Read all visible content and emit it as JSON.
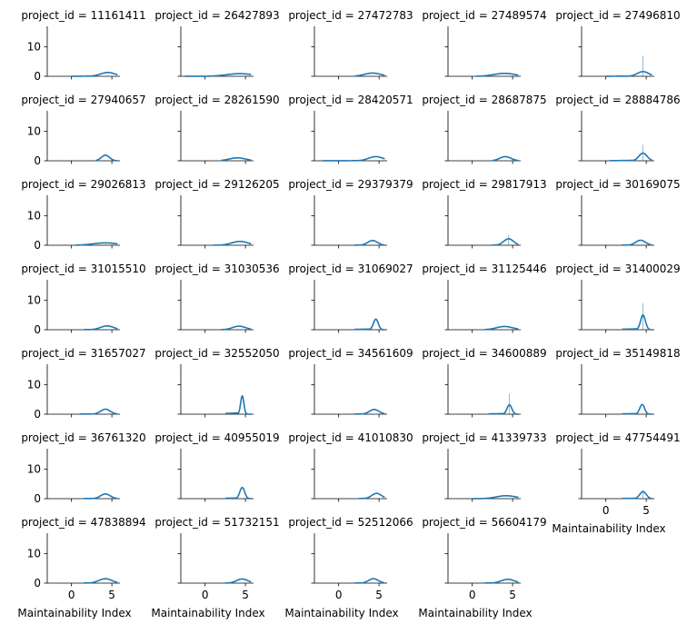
{
  "chart_data": {
    "type": "facet-kde",
    "description_title_format": "project_id = {id}",
    "xlabel": "Maintainability Index",
    "ylabel": "",
    "xlim": [
      -3,
      6
    ],
    "ylim": [
      0,
      17
    ],
    "x_ticks": [
      0,
      5
    ],
    "y_ticks": [
      0,
      10
    ],
    "n_columns": 5,
    "line_color": "#1f77b4",
    "panels": [
      {
        "title": "project_id = 11161411",
        "peak_x": 4.5,
        "peak_y": 1.3,
        "spread": 0.9,
        "x_min": 0.0
      },
      {
        "title": "project_id = 26427893",
        "peak_x": 4.3,
        "peak_y": 0.9,
        "spread": 1.6,
        "x_min": -2.5
      },
      {
        "title": "project_id = 27472783",
        "peak_x": 4.2,
        "peak_y": 1.1,
        "spread": 1.0,
        "x_min": 2.0
      },
      {
        "title": "project_id = 27489574",
        "peak_x": 4.0,
        "peak_y": 1.0,
        "spread": 1.3,
        "x_min": 0.5
      },
      {
        "title": "project_id = 27496810",
        "peak_x": 4.6,
        "peak_y": 1.6,
        "spread": 0.7,
        "x_min": 0.0,
        "spike": 7.0
      },
      {
        "title": "project_id = 27940657",
        "peak_x": 4.2,
        "peak_y": 1.9,
        "spread": 0.5,
        "x_min": 3.0
      },
      {
        "title": "project_id = 28261590",
        "peak_x": 4.0,
        "peak_y": 1.0,
        "spread": 1.0,
        "x_min": 2.0
      },
      {
        "title": "project_id = 28420571",
        "peak_x": 4.6,
        "peak_y": 1.4,
        "spread": 0.9,
        "x_min": -2.0
      },
      {
        "title": "project_id = 28687875",
        "peak_x": 4.1,
        "peak_y": 1.4,
        "spread": 0.7,
        "x_min": 2.5
      },
      {
        "title": "project_id = 28884786",
        "peak_x": 4.6,
        "peak_y": 2.6,
        "spread": 0.5,
        "x_min": 0.5,
        "spike": 5.5
      },
      {
        "title": "project_id = 29026813",
        "peak_x": 4.2,
        "peak_y": 0.8,
        "spread": 1.5,
        "x_min": 0.5
      },
      {
        "title": "project_id = 29126205",
        "peak_x": 4.3,
        "peak_y": 1.3,
        "spread": 1.0,
        "x_min": 1.0
      },
      {
        "title": "project_id = 29379379",
        "peak_x": 4.2,
        "peak_y": 1.6,
        "spread": 0.6,
        "x_min": 2.0
      },
      {
        "title": "project_id = 29817913",
        "peak_x": 4.5,
        "peak_y": 2.2,
        "spread": 0.6,
        "x_min": 2.5,
        "spike": 3.5
      },
      {
        "title": "project_id = 30169075",
        "peak_x": 4.3,
        "peak_y": 1.7,
        "spread": 0.6,
        "x_min": 2.0
      },
      {
        "title": "project_id = 31015510",
        "peak_x": 4.4,
        "peak_y": 1.3,
        "spread": 0.8,
        "x_min": 1.5
      },
      {
        "title": "project_id = 31030536",
        "peak_x": 4.2,
        "peak_y": 1.2,
        "spread": 0.8,
        "x_min": 2.0
      },
      {
        "title": "project_id = 31069027",
        "peak_x": 4.6,
        "peak_y": 3.6,
        "spread": 0.3,
        "x_min": 2.0
      },
      {
        "title": "project_id = 31125446",
        "peak_x": 4.0,
        "peak_y": 1.1,
        "spread": 1.0,
        "x_min": 1.5
      },
      {
        "title": "project_id = 31400029",
        "peak_x": 4.6,
        "peak_y": 5.0,
        "spread": 0.3,
        "x_min": 2.0,
        "spike": 9.0
      },
      {
        "title": "project_id = 31657027",
        "peak_x": 4.2,
        "peak_y": 1.7,
        "spread": 0.6,
        "x_min": 1.0
      },
      {
        "title": "project_id = 32552050",
        "peak_x": 4.6,
        "peak_y": 6.2,
        "spread": 0.2,
        "x_min": 2.5
      },
      {
        "title": "project_id = 34561609",
        "peak_x": 4.4,
        "peak_y": 1.6,
        "spread": 0.6,
        "x_min": 2.0
      },
      {
        "title": "project_id = 34600889",
        "peak_x": 4.6,
        "peak_y": 3.2,
        "spread": 0.3,
        "x_min": 2.0,
        "spike": 7.0
      },
      {
        "title": "project_id = 35149818",
        "peak_x": 4.5,
        "peak_y": 3.3,
        "spread": 0.3,
        "x_min": 2.0
      },
      {
        "title": "project_id = 36761320",
        "peak_x": 4.2,
        "peak_y": 1.6,
        "spread": 0.6,
        "x_min": 1.5
      },
      {
        "title": "project_id = 40955019",
        "peak_x": 4.6,
        "peak_y": 3.8,
        "spread": 0.3,
        "x_min": 2.5
      },
      {
        "title": "project_id = 41010830",
        "peak_x": 4.7,
        "peak_y": 1.8,
        "spread": 0.6,
        "x_min": 2.5
      },
      {
        "title": "project_id = 41339733",
        "peak_x": 4.2,
        "peak_y": 1.0,
        "spread": 1.2,
        "x_min": 0.0
      },
      {
        "title": "project_id = 47754491",
        "peak_x": 4.6,
        "peak_y": 2.4,
        "spread": 0.4,
        "x_min": 2.0,
        "spike": 3.0
      },
      {
        "title": "project_id = 47838894",
        "peak_x": 4.2,
        "peak_y": 1.5,
        "spread": 0.8,
        "x_min": 1.5
      },
      {
        "title": "project_id = 51732151",
        "peak_x": 4.6,
        "peak_y": 1.4,
        "spread": 0.7,
        "x_min": 2.5
      },
      {
        "title": "project_id = 52512066",
        "peak_x": 4.3,
        "peak_y": 1.5,
        "spread": 0.6,
        "x_min": 2.0
      },
      {
        "title": "project_id = 56604179",
        "peak_x": 4.4,
        "peak_y": 1.3,
        "spread": 0.8,
        "x_min": 1.5
      }
    ]
  }
}
